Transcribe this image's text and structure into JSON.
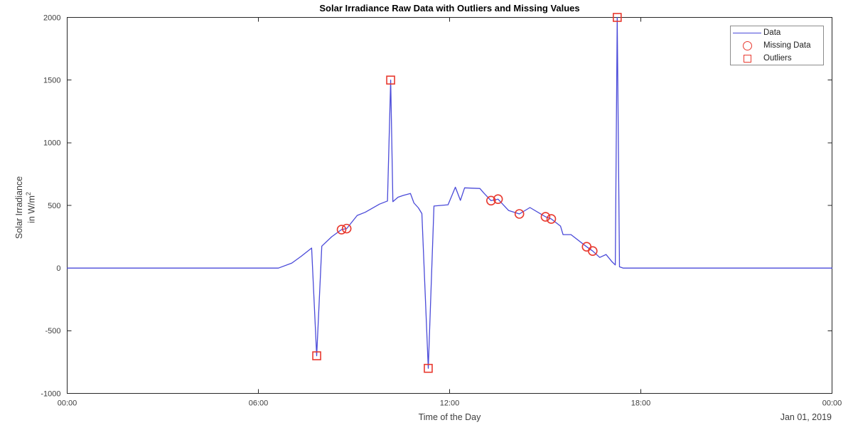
{
  "figure": {
    "title": "Solar Irradiance Raw Data with Outliers and Missing Values",
    "x_axis_label": "Time of the Day",
    "y_axis_label_line1": "Solar Irradiance",
    "y_axis_label_line2": "in W/m",
    "y_axis_label_exponent": "2",
    "date_annotation": "Jan 01, 2019"
  },
  "legend": {
    "position": "upper-right",
    "items": [
      {
        "label": "Data",
        "marker": "blue-line"
      },
      {
        "label": "Missing Data",
        "marker": "red-circle"
      },
      {
        "label": "Outliers",
        "marker": "red-square"
      }
    ]
  },
  "colors": {
    "data_line": "#4a4ad9",
    "marker_red": "#e8392f",
    "axis": "#262626",
    "tick_label": "#3d3d3d"
  },
  "chart_data": {
    "type": "line",
    "title": "Solar Irradiance Raw Data with Outliers and Missing Values",
    "xlabel": "Time of the Day",
    "ylabel": "Solar Irradiance in W/m^2",
    "date": "Jan 01, 2019",
    "grid": false,
    "legend_position": "upper right",
    "xlim_hours": [
      0,
      24
    ],
    "ylim": [
      -1000,
      2000
    ],
    "x_ticks": [
      {
        "hour": 0,
        "label": "00:00"
      },
      {
        "hour": 6,
        "label": "06:00"
      },
      {
        "hour": 12,
        "label": "12:00"
      },
      {
        "hour": 18,
        "label": "18:00"
      },
      {
        "hour": 24,
        "label": "00:00"
      }
    ],
    "y_ticks": [
      {
        "value": -1000,
        "label": "-1000"
      },
      {
        "value": -500,
        "label": "-500"
      },
      {
        "value": 0,
        "label": "0"
      },
      {
        "value": 500,
        "label": "500"
      },
      {
        "value": 1000,
        "label": "1000"
      },
      {
        "value": 1500,
        "label": "1500"
      },
      {
        "value": 2000,
        "label": "2000"
      }
    ],
    "series": [
      {
        "name": "Data",
        "type": "line",
        "color_key": "data_line",
        "points_hour_value": [
          [
            0,
            0
          ],
          [
            6.63,
            0
          ],
          [
            7.05,
            40
          ],
          [
            7.35,
            95
          ],
          [
            7.67,
            160
          ],
          [
            7.83,
            -700
          ],
          [
            7.99,
            175
          ],
          [
            8.3,
            250
          ],
          [
            8.61,
            307
          ],
          [
            8.77,
            315
          ],
          [
            9.1,
            420
          ],
          [
            9.35,
            445
          ],
          [
            9.8,
            510
          ],
          [
            10.05,
            535
          ],
          [
            10.15,
            1500
          ],
          [
            10.22,
            530
          ],
          [
            10.38,
            565
          ],
          [
            10.55,
            580
          ],
          [
            10.77,
            595
          ],
          [
            10.88,
            520
          ],
          [
            11.02,
            480
          ],
          [
            11.13,
            435
          ],
          [
            11.33,
            -800
          ],
          [
            11.51,
            495
          ],
          [
            11.95,
            505
          ],
          [
            12.18,
            645
          ],
          [
            12.34,
            540
          ],
          [
            12.47,
            640
          ],
          [
            12.95,
            635
          ],
          [
            13.07,
            600
          ],
          [
            13.3,
            538
          ],
          [
            13.52,
            550
          ],
          [
            13.85,
            460
          ],
          [
            14.19,
            432
          ],
          [
            14.52,
            483
          ],
          [
            15.01,
            409
          ],
          [
            15.19,
            392
          ],
          [
            15.48,
            335
          ],
          [
            15.56,
            267
          ],
          [
            15.81,
            267
          ],
          [
            16.3,
            170
          ],
          [
            16.49,
            136
          ],
          [
            16.71,
            85
          ],
          [
            16.91,
            108
          ],
          [
            17.1,
            50
          ],
          [
            17.2,
            25
          ],
          [
            17.26,
            2000
          ],
          [
            17.33,
            10
          ],
          [
            17.45,
            0
          ],
          [
            24,
            0
          ]
        ]
      },
      {
        "name": "Missing Data",
        "type": "scatter",
        "marker": "circle",
        "color_key": "marker_red",
        "points_hour_value": [
          [
            8.61,
            307
          ],
          [
            8.77,
            315
          ],
          [
            13.3,
            538
          ],
          [
            13.52,
            550
          ],
          [
            14.19,
            432
          ],
          [
            15.01,
            409
          ],
          [
            15.19,
            392
          ],
          [
            16.3,
            170
          ],
          [
            16.49,
            136
          ]
        ]
      },
      {
        "name": "Outliers",
        "type": "scatter",
        "marker": "square",
        "color_key": "marker_red",
        "points_hour_value": [
          [
            7.83,
            -700
          ],
          [
            10.15,
            1500
          ],
          [
            11.33,
            -800
          ],
          [
            17.26,
            2000
          ]
        ]
      }
    ]
  }
}
